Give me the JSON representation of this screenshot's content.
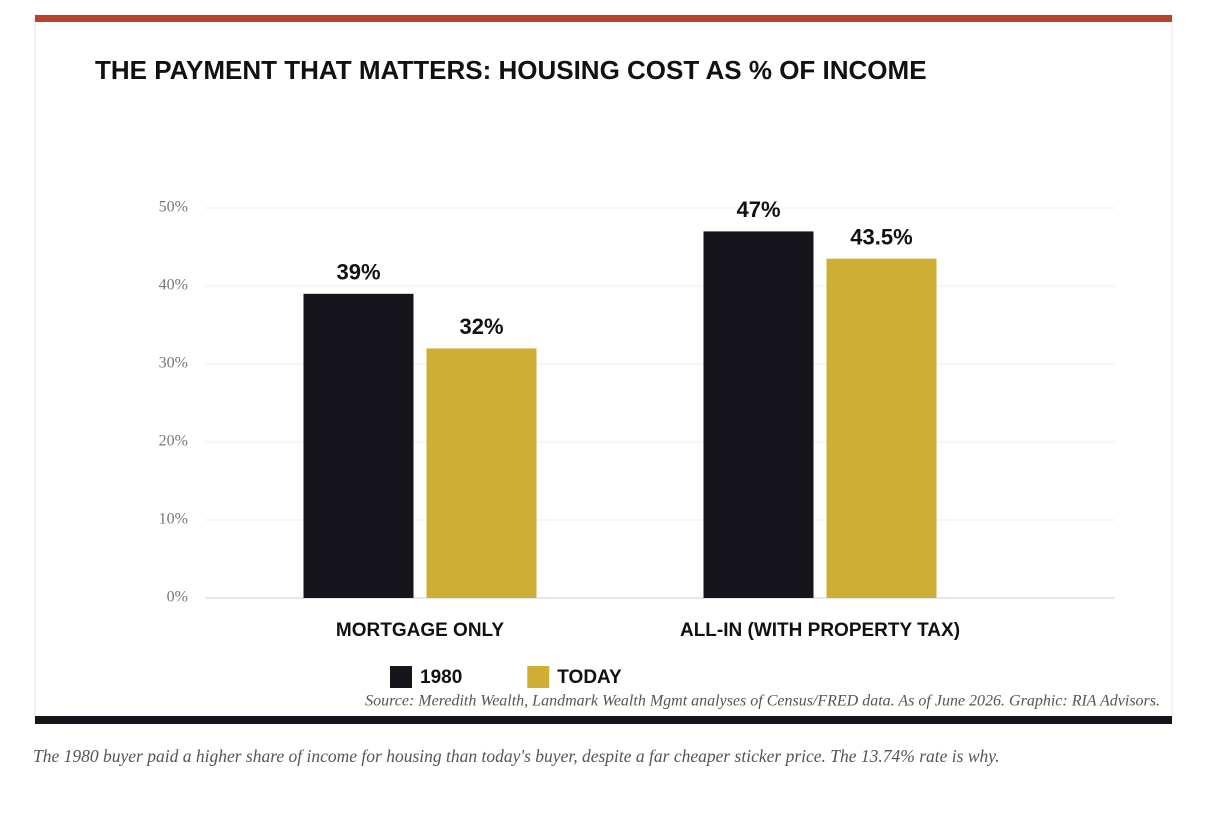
{
  "chart_data": {
    "type": "bar",
    "title": "THE PAYMENT THAT MATTERS: HOUSING COST AS % OF INCOME",
    "categories": [
      "MORTGAGE ONLY",
      "ALL-IN (WITH PROPERTY TAX)"
    ],
    "series": [
      {
        "name": "1980",
        "color": "#15151b",
        "values": [
          39,
          47
        ],
        "value_labels": [
          "39%",
          "47%"
        ]
      },
      {
        "name": "TODAY",
        "color": "#cfae35",
        "values": [
          32,
          43.5
        ],
        "value_labels": [
          "32%",
          "43.5%"
        ]
      }
    ],
    "ylim": [
      0,
      50
    ],
    "yticks": [
      {
        "value": 0,
        "label": "0%"
      },
      {
        "value": 10,
        "label": "10%"
      },
      {
        "value": 20,
        "label": "20%"
      },
      {
        "value": 30,
        "label": "30%"
      },
      {
        "value": 40,
        "label": "40%"
      },
      {
        "value": 50,
        "label": "50%"
      }
    ],
    "grid": true,
    "source": "Source: Meredith Wealth, Landmark Wealth Mgmt analyses of Census/FRED data. As of June 2026. Graphic: RIA Advisors."
  },
  "caption": "The 1980 buyer paid a higher share of income for housing than today's buyer, despite a far cheaper sticker price. The 13.74% rate is why."
}
